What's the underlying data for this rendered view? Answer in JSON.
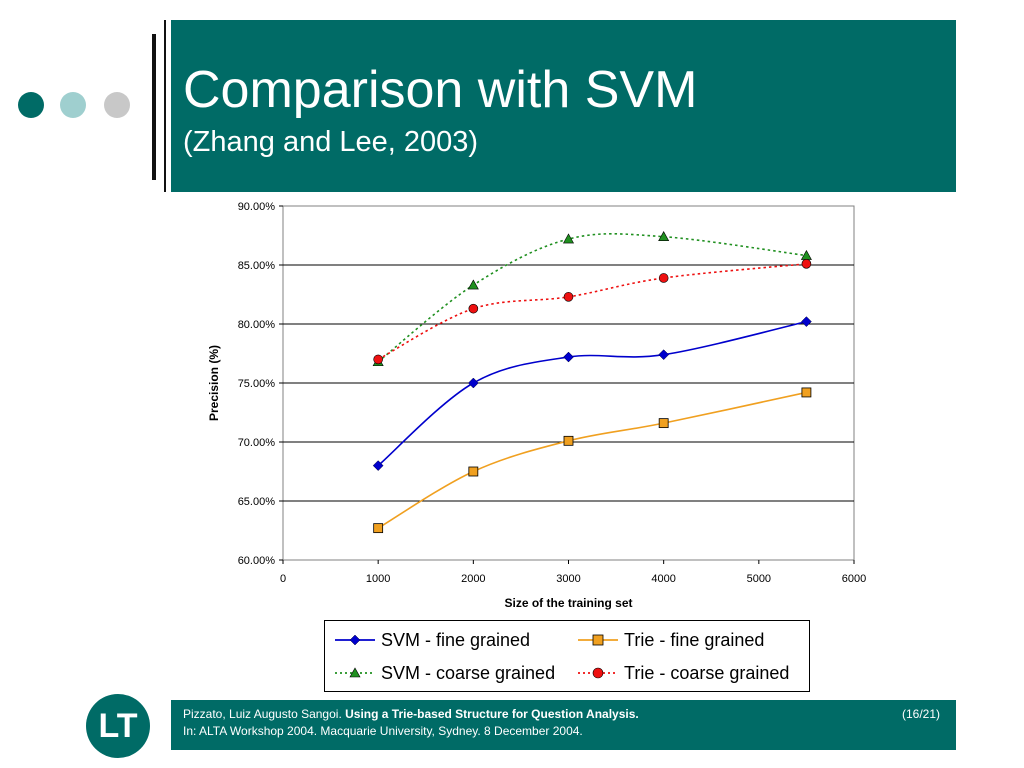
{
  "title": "Comparison with SVM",
  "subtitle": "(Zhang and Lee, 2003)",
  "colors": {
    "teal": "#006b66",
    "dot1": "#006b66",
    "dot2": "#9fcfcf",
    "dot3": "#c8c8c8"
  },
  "footer": {
    "authors": "Pizzato, Luiz Augusto Sangoi.",
    "paper_title": "Using a Trie-based Structure for Question Analysis.",
    "venue": "In: ALTA Workshop 2004. Macquarie University, Sydney. 8 December 2004.",
    "page": "(16/21)"
  },
  "logo": {
    "text": "LT"
  },
  "chart_data": {
    "type": "line",
    "xlabel": "Size of the training set",
    "ylabel": "Precision (%)",
    "xlim": [
      0,
      6000
    ],
    "ylim": [
      60,
      90
    ],
    "x_ticks": [
      "0",
      "1000",
      "2000",
      "3000",
      "4000",
      "5000",
      "6000"
    ],
    "y_ticks": [
      "60.00%",
      "65.00%",
      "70.00%",
      "75.00%",
      "80.00%",
      "85.00%",
      "90.00%"
    ],
    "grid": "horizontal",
    "legend_position": "bottom",
    "series": [
      {
        "name": "SVM - fine grained",
        "color": "#0000cc",
        "marker": "diamond",
        "dash": "solid",
        "x": [
          1000,
          2000,
          3000,
          4000,
          5500
        ],
        "y": [
          68.0,
          75.0,
          77.2,
          77.4,
          80.2
        ]
      },
      {
        "name": "Trie - fine grained",
        "color": "#f0a020",
        "marker": "square",
        "dash": "solid",
        "x": [
          1000,
          2000,
          3000,
          4000,
          5500
        ],
        "y": [
          62.7,
          67.5,
          70.1,
          71.6,
          74.2
        ]
      },
      {
        "name": "SVM - coarse grained",
        "color": "#209020",
        "marker": "triangle",
        "dash": "dotted",
        "x": [
          1000,
          2000,
          3000,
          4000,
          5500
        ],
        "y": [
          76.8,
          83.3,
          87.2,
          87.4,
          85.8
        ]
      },
      {
        "name": "Trie - coarse grained",
        "color": "#ee1111",
        "marker": "circle",
        "dash": "dotted",
        "x": [
          1000,
          2000,
          3000,
          4000,
          5500
        ],
        "y": [
          77.0,
          81.3,
          82.3,
          83.9,
          85.1
        ]
      }
    ]
  }
}
